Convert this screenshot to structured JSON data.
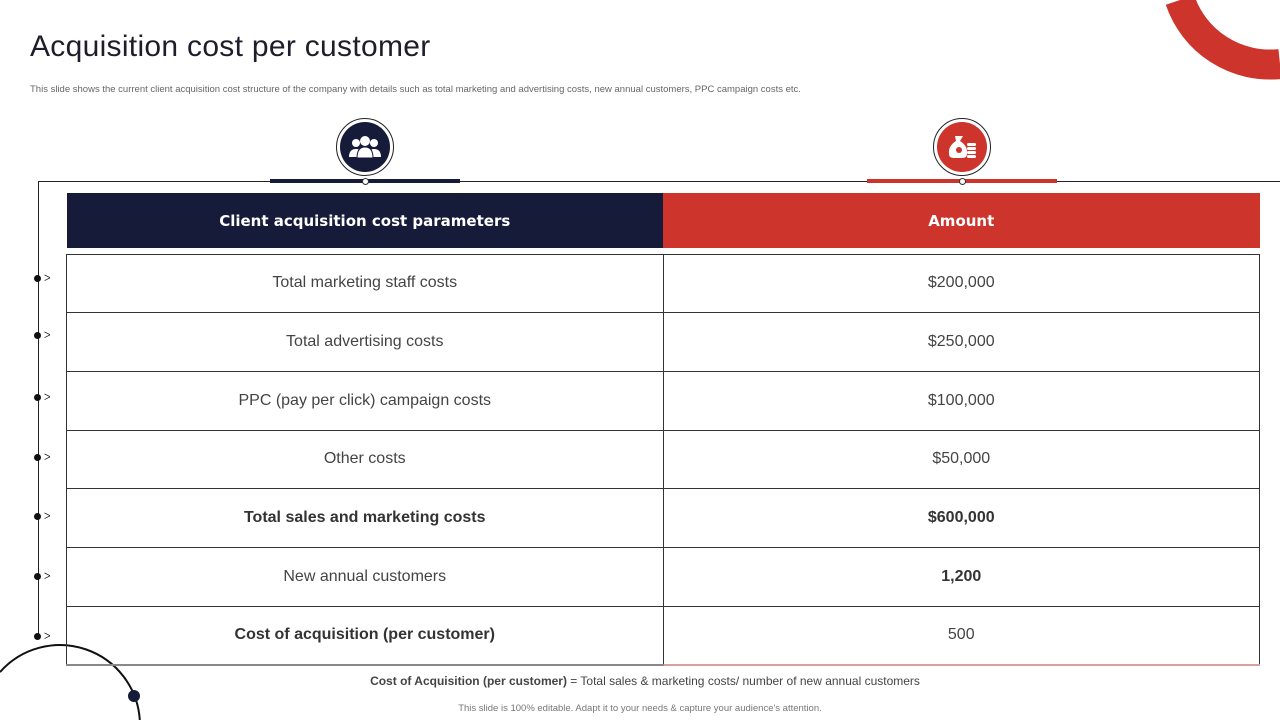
{
  "title": "Acquisition cost per customer",
  "subtitle": "This slide shows the current client acquisition cost structure of the company with details such as total marketing and advertising costs, new annual customers, PPC  campaign costs etc.",
  "colors": {
    "navy": "#161b3a",
    "red": "#cc342c"
  },
  "icons": {
    "left": "people-group-icon",
    "right": "money-bag-coins-icon"
  },
  "table": {
    "headers": [
      "Client acquisition cost parameters",
      "Amount"
    ],
    "rows": [
      {
        "param": "Total marketing staff costs",
        "amount": "$200,000"
      },
      {
        "param": "Total advertising costs",
        "amount": "$250,000"
      },
      {
        "param": "PPC (pay per click) campaign costs",
        "amount": "$100,000"
      },
      {
        "param": "Other costs",
        "amount": "$50,000"
      },
      {
        "param": "Total sales and marketing costs",
        "amount": "$600,000"
      },
      {
        "param": "New annual customers",
        "amount": "1,200"
      },
      {
        "param": "Cost of acquisition (per customer)",
        "amount": "500"
      }
    ]
  },
  "formula": {
    "label": "Cost of Acquisition (per customer)",
    "text": " = Total sales & marketing costs/ number of new annual customers"
  },
  "footer": "This slide is 100% editable. Adapt it to your needs & capture your audience's attention."
}
